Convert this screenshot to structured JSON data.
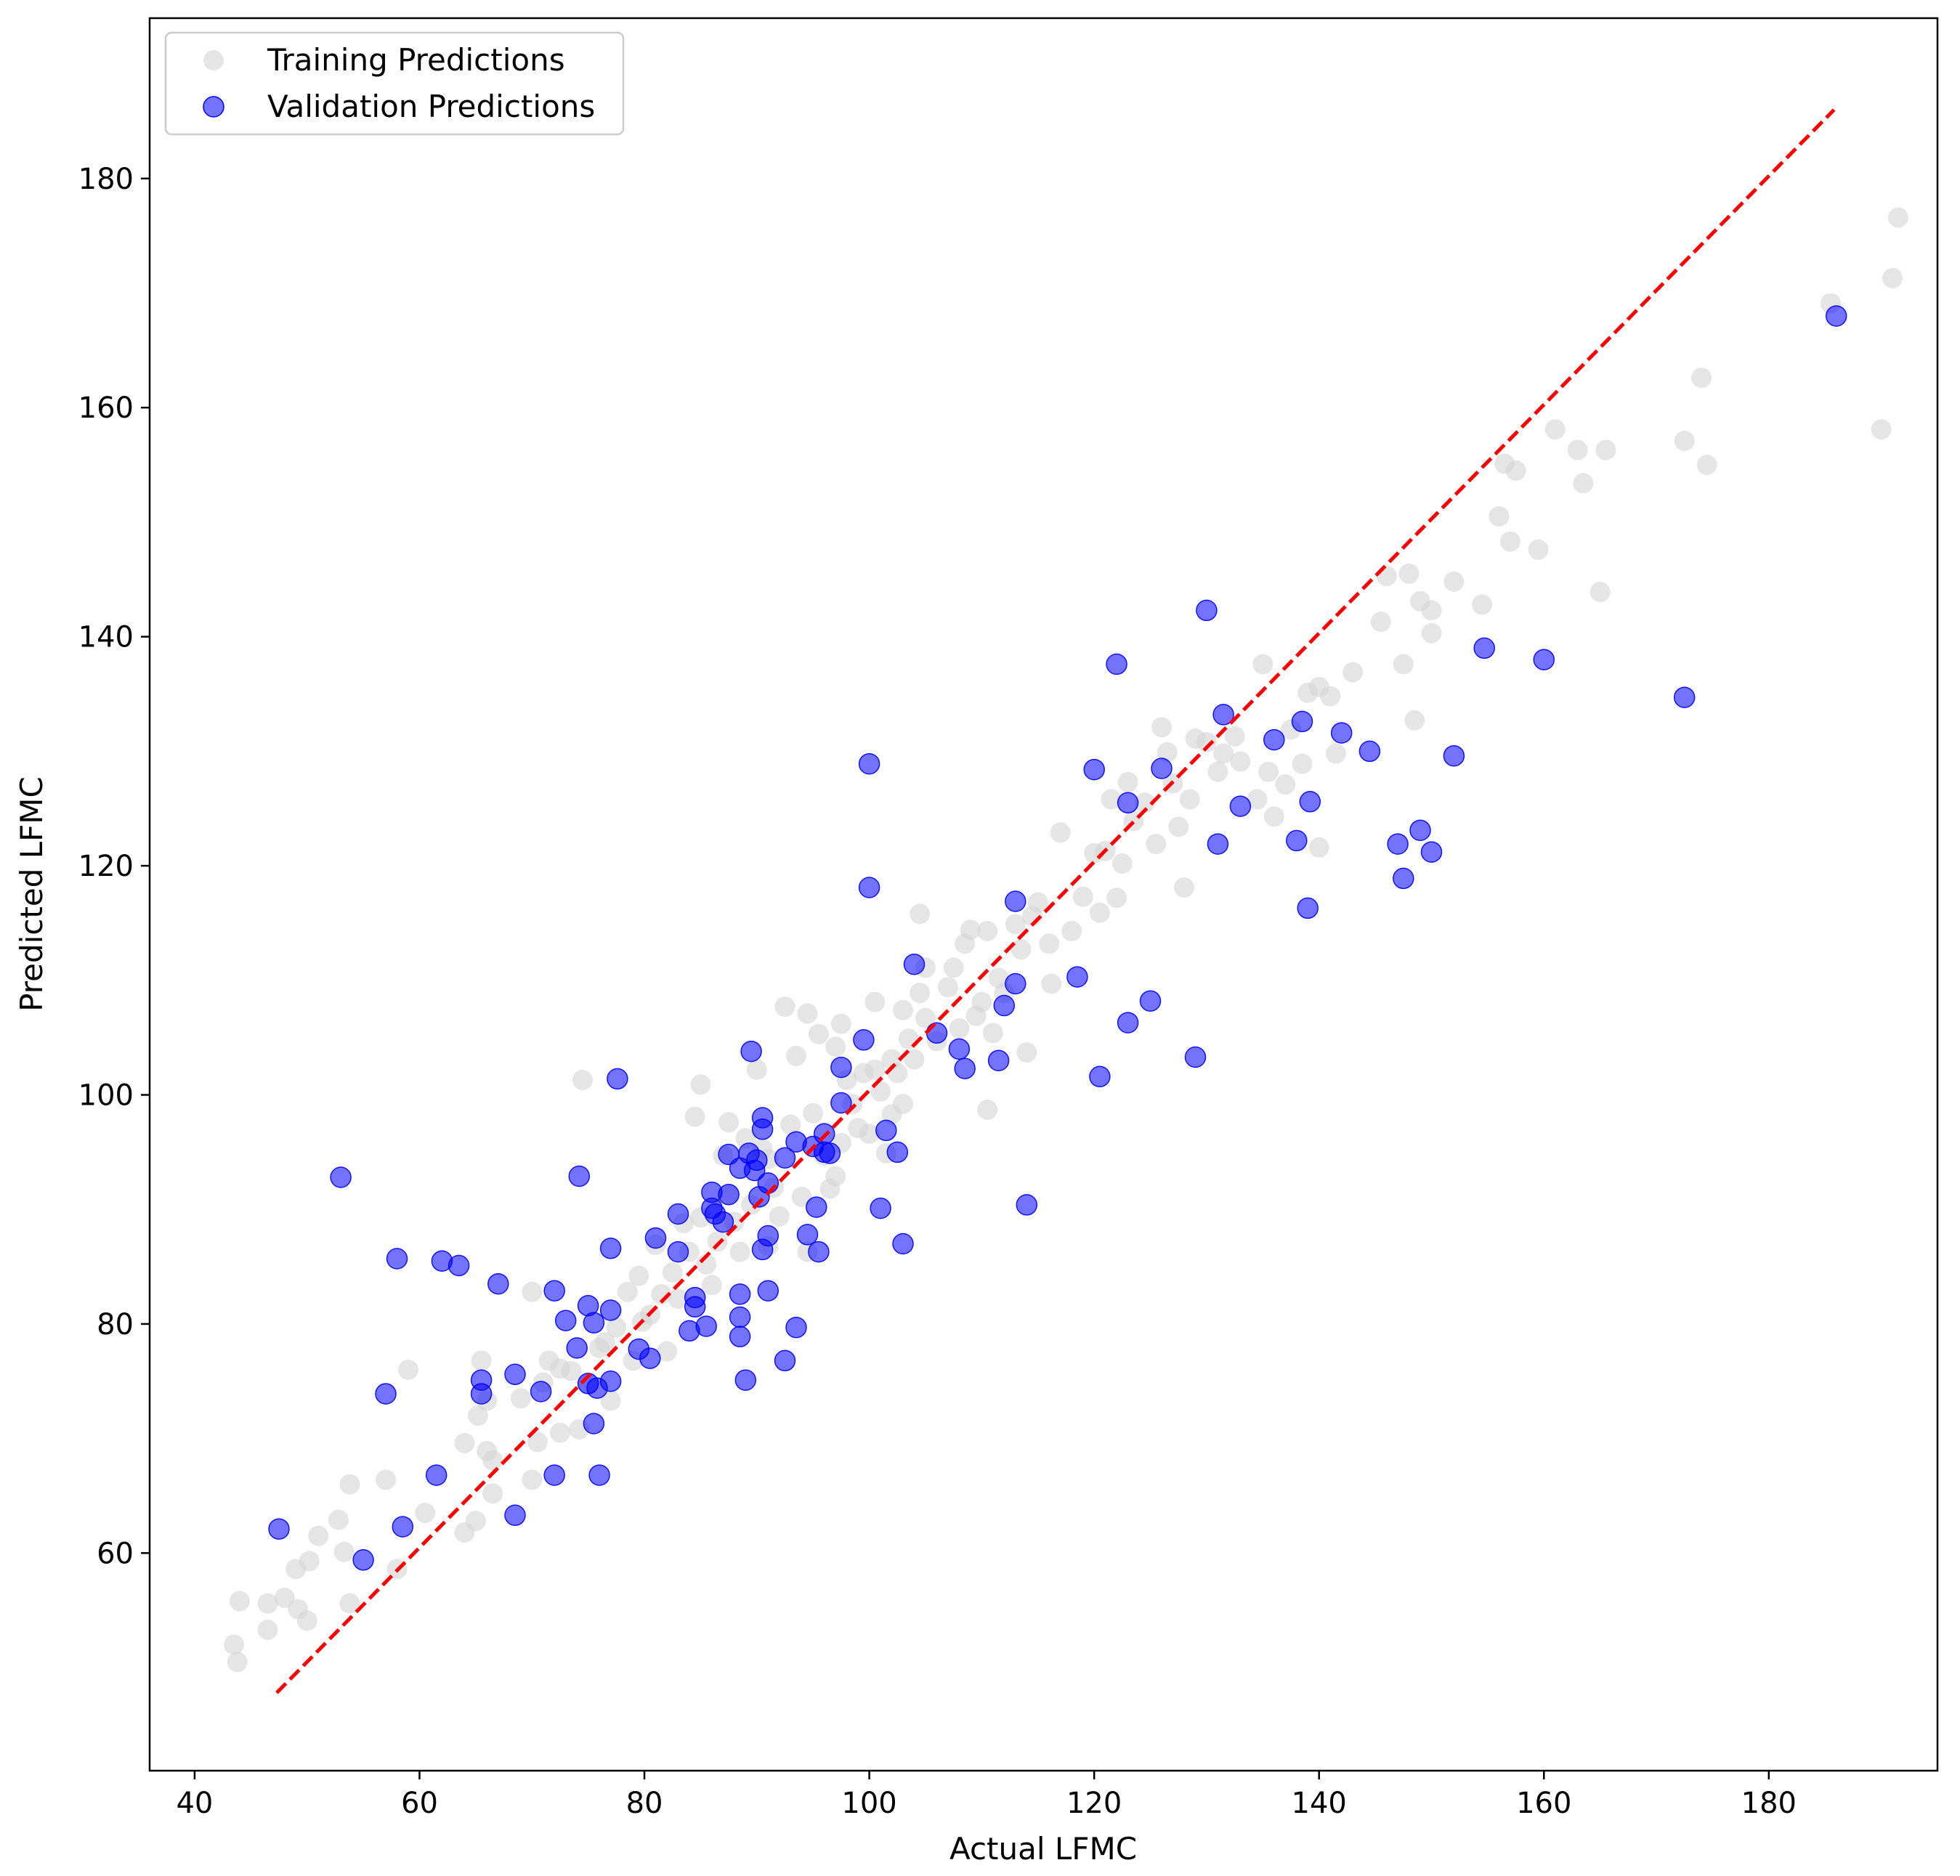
{
  "chart_data": {
    "type": "scatter",
    "xlabel": "Actual LFMC",
    "ylabel": "Predicted LFMC",
    "xlim": [
      36,
      195
    ],
    "ylim": [
      41,
      194
    ],
    "x_ticks": [
      40,
      60,
      80,
      100,
      120,
      140,
      160,
      180
    ],
    "y_ticks": [
      60,
      80,
      100,
      120,
      140,
      160,
      180
    ],
    "grid": false,
    "legend_position": "upper left",
    "colors": {
      "training": "#d3d3d3",
      "validation": "#0000ff",
      "reference_line": "#ff0000"
    },
    "reference_line": {
      "style": "dashed",
      "x": [
        47.3,
        185.8
      ],
      "y": [
        47.8,
        186.0
      ]
    },
    "series": [
      {
        "name": "Training Predictions",
        "points": [
          [
            43.5,
            52
          ],
          [
            43.8,
            50.5
          ],
          [
            44,
            55.8
          ],
          [
            46.5,
            53.3
          ],
          [
            46.5,
            55.6
          ],
          [
            48,
            56.1
          ],
          [
            49,
            58.6
          ],
          [
            49.2,
            55.1
          ],
          [
            50,
            54.1
          ],
          [
            50.2,
            59.3
          ],
          [
            51,
            61.5
          ],
          [
            52.8,
            62.9
          ],
          [
            53.3,
            60.1
          ],
          [
            53.8,
            66
          ],
          [
            53.8,
            55.6
          ],
          [
            57,
            66.4
          ],
          [
            58,
            58.6
          ],
          [
            59,
            76
          ],
          [
            60.5,
            63.5
          ],
          [
            64,
            61.8
          ],
          [
            64,
            69.6
          ],
          [
            65,
            62.8
          ],
          [
            65.2,
            72
          ],
          [
            65.5,
            76.8
          ],
          [
            66,
            73.3
          ],
          [
            66,
            68.9
          ],
          [
            66.5,
            68.1
          ],
          [
            66.5,
            65.2
          ],
          [
            69,
            73.5
          ],
          [
            70,
            66.4
          ],
          [
            70,
            82.8
          ],
          [
            70.5,
            69.7
          ],
          [
            71,
            74.9
          ],
          [
            71.5,
            76.8
          ],
          [
            72.5,
            70.5
          ],
          [
            72.5,
            76.1
          ],
          [
            73.5,
            75.9
          ],
          [
            74.2,
            70.8
          ],
          [
            74.5,
            101.3
          ],
          [
            75,
            74.8
          ],
          [
            76,
            77.9
          ],
          [
            76.5,
            78.4
          ],
          [
            77,
            73.3
          ],
          [
            77.5,
            79.7
          ],
          [
            78.5,
            82.8
          ],
          [
            79,
            76.8
          ],
          [
            79.5,
            84.2
          ],
          [
            79.8,
            80.2
          ],
          [
            80.5,
            80.8
          ],
          [
            81,
            86.9
          ],
          [
            81.5,
            82.6
          ],
          [
            82,
            77.6
          ],
          [
            82.5,
            84.5
          ],
          [
            83,
            82.2
          ],
          [
            83.5,
            88.8
          ],
          [
            84,
            86.3
          ],
          [
            84.5,
            98.1
          ],
          [
            85,
            100.9
          ],
          [
            85,
            89.3
          ],
          [
            85.5,
            85.2
          ],
          [
            86,
            83.4
          ],
          [
            86.5,
            87.2
          ],
          [
            87,
            94.7
          ],
          [
            87.5,
            91.3
          ],
          [
            87.5,
            97.6
          ],
          [
            88,
            88.9
          ],
          [
            88.5,
            86.3
          ],
          [
            89,
            96.2
          ],
          [
            89.5,
            90.4
          ],
          [
            90,
            102.2
          ],
          [
            90.5,
            95.3
          ],
          [
            91,
            86.8
          ],
          [
            91,
            94.4
          ],
          [
            91.5,
            91.9
          ],
          [
            92,
            89.4
          ],
          [
            92.5,
            107.7
          ],
          [
            93,
            97.4
          ],
          [
            93.5,
            103.4
          ],
          [
            94,
            91.1
          ],
          [
            94.5,
            86.3
          ],
          [
            94.5,
            107.1
          ],
          [
            95,
            98.4
          ],
          [
            95.5,
            105.3
          ],
          [
            96,
            94.7
          ],
          [
            96.5,
            91.8
          ],
          [
            97,
            92.9
          ],
          [
            97,
            104.2
          ],
          [
            97.5,
            95.8
          ],
          [
            97.5,
            106.2
          ],
          [
            98,
            101.3
          ],
          [
            98.5,
            99.2
          ],
          [
            99,
            97.1
          ],
          [
            99.5,
            101.9
          ],
          [
            100,
            96.6
          ],
          [
            100.5,
            102.2
          ],
          [
            100.5,
            108.1
          ],
          [
            101,
            100.3
          ],
          [
            101.5,
            94.9
          ],
          [
            102,
            98.3
          ],
          [
            102,
            103.1
          ],
          [
            102.5,
            101.9
          ],
          [
            103,
            107.4
          ],
          [
            103,
            99.2
          ],
          [
            103.5,
            104.9
          ],
          [
            104,
            103.1
          ],
          [
            104.5,
            115.8
          ],
          [
            104.5,
            108.9
          ],
          [
            105,
            111.1
          ],
          [
            105,
            106.7
          ],
          [
            106,
            104.7
          ],
          [
            107,
            109.4
          ],
          [
            107.5,
            111.1
          ],
          [
            108,
            105.8
          ],
          [
            108.5,
            113.2
          ],
          [
            109,
            114.4
          ],
          [
            109.5,
            106.9
          ],
          [
            110,
            108.1
          ],
          [
            110.5,
            98.7
          ],
          [
            110.5,
            114.3
          ],
          [
            111,
            105.4
          ],
          [
            111.5,
            110.2
          ],
          [
            112,
            108.9
          ],
          [
            113,
            114.9
          ],
          [
            113.5,
            112.7
          ],
          [
            114,
            103.7
          ],
          [
            114.5,
            115.6
          ],
          [
            115,
            116.8
          ],
          [
            116,
            113.2
          ],
          [
            116.2,
            109.7
          ],
          [
            117,
            122.9
          ],
          [
            118,
            114.3
          ],
          [
            119,
            117.3
          ],
          [
            120,
            121.1
          ],
          [
            120.5,
            115.9
          ],
          [
            121,
            121.3
          ],
          [
            121.5,
            125.8
          ],
          [
            122,
            117.2
          ],
          [
            122.5,
            120.2
          ],
          [
            123,
            127.3
          ],
          [
            123.5,
            123.9
          ],
          [
            124.5,
            125.5
          ],
          [
            125.5,
            121.9
          ],
          [
            126,
            132.1
          ],
          [
            126.5,
            129.9
          ],
          [
            127,
            127.2
          ],
          [
            127.5,
            123.4
          ],
          [
            128,
            118.1
          ],
          [
            128.5,
            125.8
          ],
          [
            129,
            131.1
          ],
          [
            130,
            130.8
          ],
          [
            131,
            128.2
          ],
          [
            131.5,
            129.8
          ],
          [
            132.5,
            131.3
          ],
          [
            133,
            129.1
          ],
          [
            134.5,
            125.8
          ],
          [
            135,
            137.6
          ],
          [
            135.5,
            128.2
          ],
          [
            136,
            124.3
          ],
          [
            137,
            127.1
          ],
          [
            137.5,
            131.9
          ],
          [
            138.5,
            128.9
          ],
          [
            139,
            135.1
          ],
          [
            140,
            135.6
          ],
          [
            140,
            121.6
          ],
          [
            141,
            134.8
          ],
          [
            141.5,
            129.8
          ],
          [
            143,
            136.9
          ],
          [
            145.5,
            141.3
          ],
          [
            146,
            145.3
          ],
          [
            147.5,
            137.6
          ],
          [
            148,
            145.5
          ],
          [
            148.5,
            132.7
          ],
          [
            149,
            143.1
          ],
          [
            150,
            142.3
          ],
          [
            150,
            140.3
          ],
          [
            152,
            144.8
          ],
          [
            154.5,
            142.8
          ],
          [
            156,
            150.5
          ],
          [
            156.5,
            155.1
          ],
          [
            157,
            148.3
          ],
          [
            157.5,
            154.5
          ],
          [
            159.5,
            147.6
          ],
          [
            161,
            158.1
          ],
          [
            163,
            156.3
          ],
          [
            163.5,
            153.4
          ],
          [
            165,
            143.9
          ],
          [
            165.5,
            156.3
          ],
          [
            172.5,
            157.1
          ],
          [
            174,
            162.6
          ],
          [
            174.5,
            155
          ],
          [
            185.5,
            169.1
          ],
          [
            190,
            158.1
          ],
          [
            191,
            171.3
          ],
          [
            191.5,
            176.6
          ]
        ]
      },
      {
        "name": "Validation Predictions",
        "points": [
          [
            47.5,
            62.1
          ],
          [
            53,
            92.8
          ],
          [
            55,
            59.4
          ],
          [
            57,
            73.9
          ],
          [
            58,
            85.7
          ],
          [
            58.5,
            62.3
          ],
          [
            61.5,
            66.8
          ],
          [
            62,
            85.5
          ],
          [
            63.5,
            85.1
          ],
          [
            65.5,
            75.1
          ],
          [
            65.5,
            73.9
          ],
          [
            67,
            83.5
          ],
          [
            68.5,
            63.3
          ],
          [
            68.5,
            75.6
          ],
          [
            70.8,
            74.1
          ],
          [
            72,
            66.8
          ],
          [
            72,
            82.9
          ],
          [
            73,
            80.3
          ],
          [
            74,
            77.9
          ],
          [
            74.2,
            92.9
          ],
          [
            75,
            81.6
          ],
          [
            75,
            74.8
          ],
          [
            75.5,
            71.3
          ],
          [
            75.5,
            80.1
          ],
          [
            75.8,
            74.4
          ],
          [
            76,
            66.8
          ],
          [
            77,
            75
          ],
          [
            77,
            81.2
          ],
          [
            77,
            86.6
          ],
          [
            77.6,
            101.4
          ],
          [
            79.5,
            77.8
          ],
          [
            80.5,
            77
          ],
          [
            81,
            87.5
          ],
          [
            83,
            86.3
          ],
          [
            83,
            89.6
          ],
          [
            84,
            79.4
          ],
          [
            84.5,
            81.5
          ],
          [
            84.5,
            82.3
          ],
          [
            85.5,
            79.8
          ],
          [
            86,
            90.1
          ],
          [
            86,
            91.5
          ],
          [
            86.3,
            89.6
          ],
          [
            87,
            88.9
          ],
          [
            87.5,
            91.3
          ],
          [
            87.5,
            94.8
          ],
          [
            88.5,
            93.6
          ],
          [
            88.5,
            82.6
          ],
          [
            88.5,
            80.6
          ],
          [
            88.5,
            78.9
          ],
          [
            89,
            75.1
          ],
          [
            89.3,
            94.9
          ],
          [
            89.5,
            103.8
          ],
          [
            89.8,
            93.4
          ],
          [
            90,
            94.3
          ],
          [
            90.2,
            91.1
          ],
          [
            90.5,
            86.5
          ],
          [
            90.5,
            97
          ],
          [
            90.5,
            98
          ],
          [
            91,
            92.3
          ],
          [
            91,
            87.7
          ],
          [
            91,
            82.9
          ],
          [
            92.5,
            94.5
          ],
          [
            92.5,
            76.8
          ],
          [
            93.5,
            95.9
          ],
          [
            93.5,
            79.7
          ],
          [
            94.5,
            87.8
          ],
          [
            95,
            95.5
          ],
          [
            95.3,
            90.2
          ],
          [
            95.5,
            86.3
          ],
          [
            96,
            95
          ],
          [
            96,
            96.6
          ],
          [
            96.5,
            94.9
          ],
          [
            97.5,
            99.3
          ],
          [
            97.5,
            102.4
          ],
          [
            99.5,
            104.8
          ],
          [
            100,
            128.9
          ],
          [
            100,
            118.1
          ],
          [
            101,
            90.1
          ],
          [
            101.5,
            96.9
          ],
          [
            102.5,
            95
          ],
          [
            103,
            87
          ],
          [
            104,
            111.4
          ],
          [
            106,
            105.4
          ],
          [
            108,
            104
          ],
          [
            108.5,
            102.3
          ],
          [
            111.5,
            103
          ],
          [
            112,
            107.8
          ],
          [
            113,
            109.7
          ],
          [
            113,
            116.9
          ],
          [
            114,
            90.4
          ],
          [
            118.5,
            110.3
          ],
          [
            120,
            128.4
          ],
          [
            120.5,
            101.6
          ],
          [
            122,
            137.6
          ],
          [
            123,
            106.3
          ],
          [
            123,
            125.5
          ],
          [
            125,
            108.2
          ],
          [
            126,
            128.5
          ],
          [
            129,
            103.3
          ],
          [
            130,
            142.3
          ],
          [
            131,
            121.9
          ],
          [
            131.5,
            133.2
          ],
          [
            133,
            125.2
          ],
          [
            136,
            131
          ],
          [
            138,
            122.2
          ],
          [
            138.5,
            132.6
          ],
          [
            139,
            116.3
          ],
          [
            139.2,
            125.6
          ],
          [
            142,
            131.6
          ],
          [
            144.5,
            130
          ],
          [
            147,
            121.9
          ],
          [
            147.5,
            118.9
          ],
          [
            149,
            123.1
          ],
          [
            150,
            121.2
          ],
          [
            152,
            129.6
          ],
          [
            154.7,
            139
          ],
          [
            160,
            138
          ],
          [
            172.5,
            134.7
          ],
          [
            186,
            168
          ]
        ]
      }
    ]
  },
  "legend": {
    "training_label": "Training Predictions",
    "validation_label": "Validation Predictions"
  }
}
